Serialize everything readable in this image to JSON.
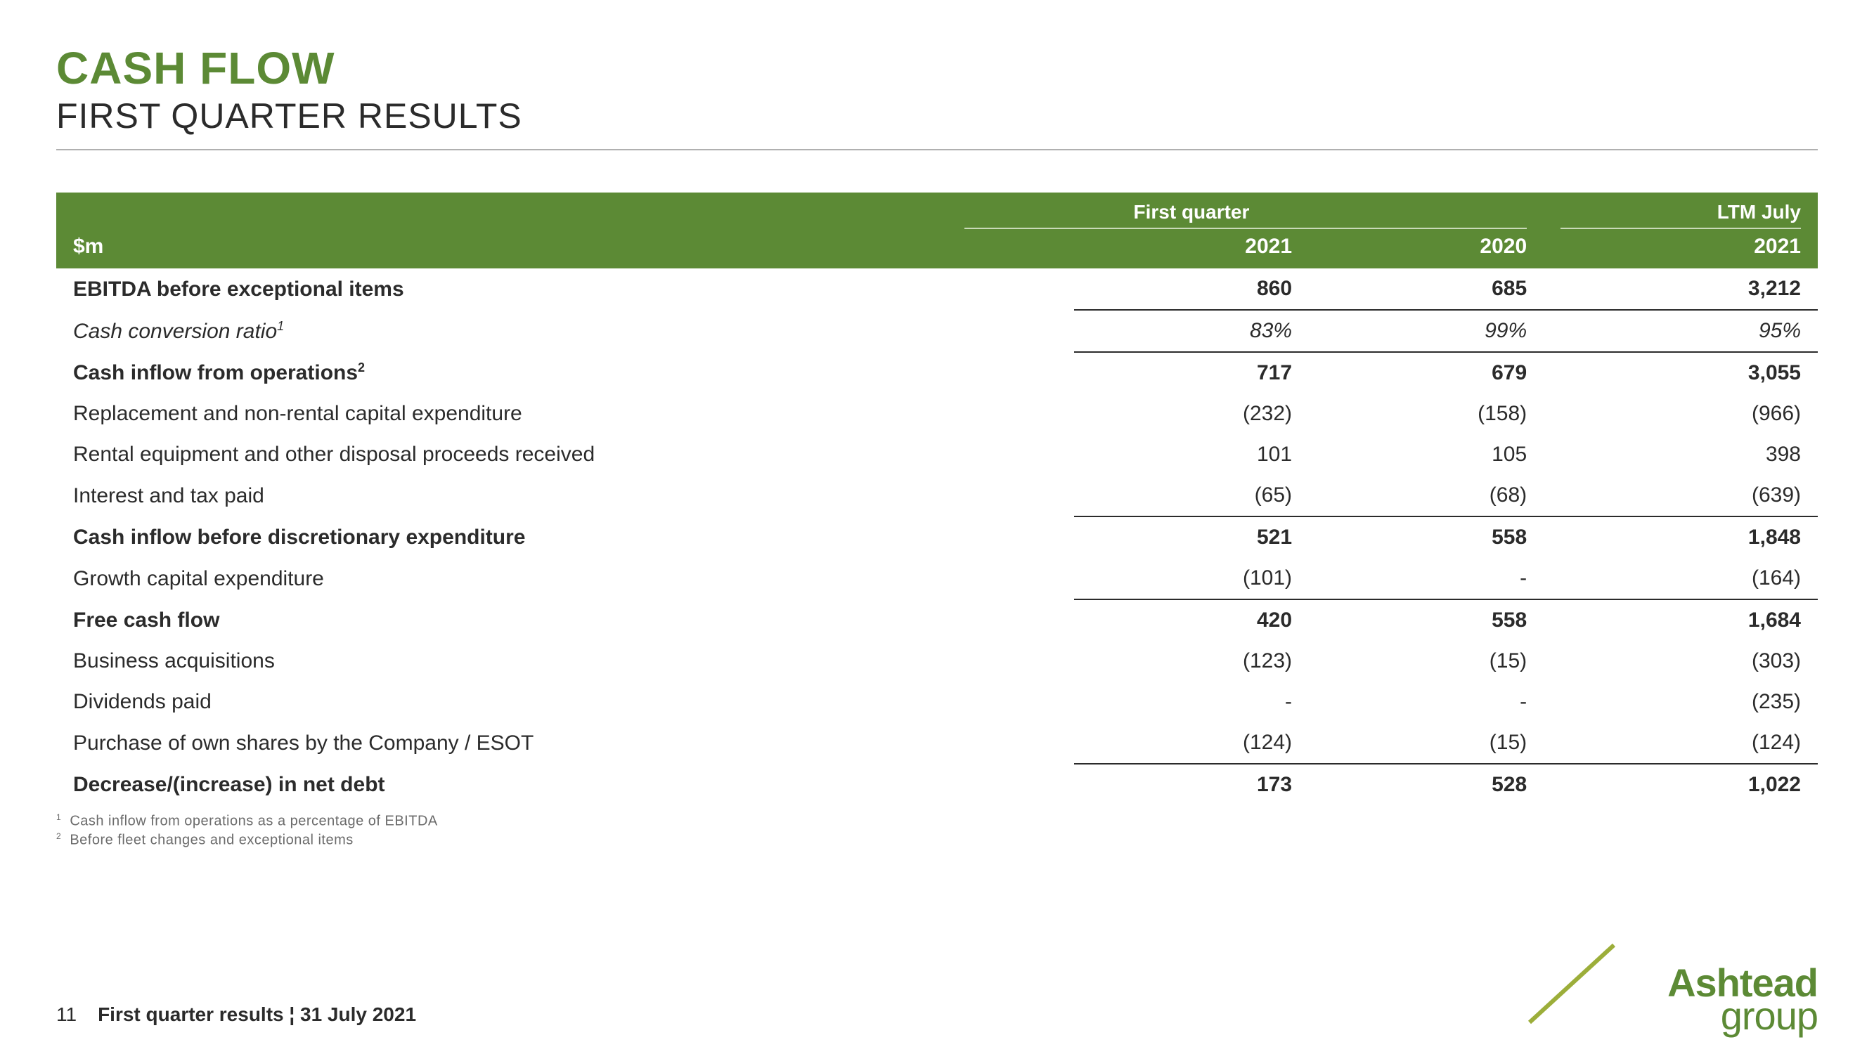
{
  "title": "CASH FLOW",
  "subtitle": "FIRST QUARTER RESULTS",
  "colors": {
    "brand_green": "#5c8a35",
    "accent_olive": "#9cae3a",
    "text": "#2b2b2b",
    "rule": "#b0b0b0",
    "header_underline": "#c9dab8",
    "background": "#ffffff"
  },
  "table": {
    "type": "table",
    "unit_label": "$m",
    "group_headers": [
      "First quarter",
      "LTM July"
    ],
    "columns": [
      "2021",
      "2020",
      "2021"
    ],
    "col_group_map": [
      0,
      0,
      1
    ],
    "rows": [
      {
        "label": "EBITDA before exceptional items",
        "values": [
          "860",
          "685",
          "3,212"
        ],
        "bold": true,
        "line_below": true
      },
      {
        "label": "Cash conversion ratio",
        "sup": "1",
        "values": [
          "83%",
          "99%",
          "95%"
        ],
        "italic": true
      },
      {
        "label": "Cash inflow from operations",
        "sup": "2",
        "values": [
          "717",
          "679",
          "3,055"
        ],
        "bold": true,
        "line_above": true
      },
      {
        "label": "Replacement and non-rental capital expenditure",
        "values": [
          "(232)",
          "(158)",
          "(966)"
        ]
      },
      {
        "label": "Rental equipment and other disposal proceeds received",
        "values": [
          "101",
          "105",
          "398"
        ]
      },
      {
        "label": "Interest and tax paid",
        "values": [
          "(65)",
          "(68)",
          "(639)"
        ]
      },
      {
        "label": "Cash inflow before discretionary expenditure",
        "values": [
          "521",
          "558",
          "1,848"
        ],
        "bold": true,
        "line_above": true
      },
      {
        "label": "Growth capital expenditure",
        "values": [
          "(101)",
          "-",
          "(164)"
        ]
      },
      {
        "label": "Free cash flow",
        "values": [
          "420",
          "558",
          "1,684"
        ],
        "bold": true,
        "line_above": true
      },
      {
        "label": "Business acquisitions",
        "values": [
          "(123)",
          "(15)",
          "(303)"
        ]
      },
      {
        "label": "Dividends paid",
        "values": [
          "-",
          "-",
          "(235)"
        ]
      },
      {
        "label": "Purchase of own shares by the Company / ESOT",
        "values": [
          "(124)",
          "(15)",
          "(124)"
        ]
      },
      {
        "label": "Decrease/(increase) in net debt",
        "values": [
          "173",
          "528",
          "1,022"
        ],
        "bold": true,
        "line_above": true
      }
    ]
  },
  "footnotes": [
    "Cash inflow from operations as a percentage of EBITDA",
    "Before fleet changes and exceptional items"
  ],
  "footer": {
    "page": "11",
    "caption": "First quarter results ¦ 31 July 2021"
  },
  "logo": {
    "line1": "Ashtead",
    "line2": "group"
  }
}
